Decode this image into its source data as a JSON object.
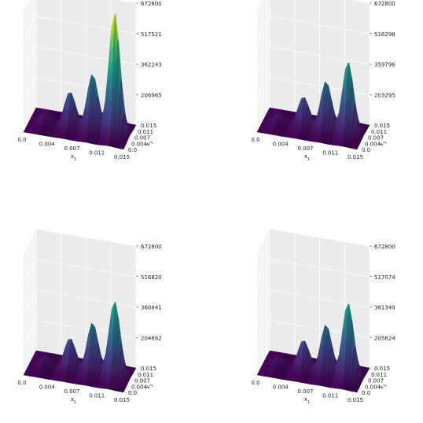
{
  "chart_data": [
    {
      "type": "surface",
      "xlabel": "x_1",
      "ylabel": "x_2",
      "x_ticks": [
        "0.0",
        "0.004",
        "0.007",
        "0.011",
        "0.015"
      ],
      "y_ticks": [
        "0.015",
        "0.011",
        "0.007",
        "0.004",
        "0.0"
      ],
      "z_ticks": [
        "206965",
        "362243",
        "517521",
        "672800"
      ],
      "zlim": [
        51687,
        672800
      ],
      "x_range": [
        0.0,
        0.015
      ],
      "y_range": [
        0.0,
        0.015
      ],
      "colormap": "viridis",
      "bumps": [
        {
          "x": 0.0022,
          "y": 0.0075,
          "z": 95000
        },
        {
          "x": 0.006,
          "y": 0.0075,
          "z": 230000
        },
        {
          "x": 0.0094,
          "y": 0.0075,
          "z": 340000
        },
        {
          "x": 0.0127,
          "y": 0.0075,
          "z": 672800
        }
      ]
    },
    {
      "type": "surface",
      "xlabel": "x_1",
      "ylabel": "x_2",
      "x_ticks": [
        "0.0",
        "0.004",
        "0.007",
        "0.011",
        "0.015"
      ],
      "y_ticks": [
        "0.015",
        "0.011",
        "0.007",
        "0.004",
        "0.0"
      ],
      "z_ticks": [
        "203295",
        "359796",
        "516298",
        "672800"
      ],
      "zlim": [
        46794,
        672800
      ],
      "x_range": [
        0.0,
        0.015
      ],
      "y_range": [
        0.0,
        0.015
      ],
      "colormap": "viridis",
      "bumps": [
        {
          "x": 0.0022,
          "y": 0.0075,
          "z": 90000
        },
        {
          "x": 0.006,
          "y": 0.0075,
          "z": 200000
        },
        {
          "x": 0.0094,
          "y": 0.0075,
          "z": 300000
        },
        {
          "x": 0.0127,
          "y": 0.0075,
          "z": 420000
        }
      ]
    },
    {
      "type": "surface",
      "xlabel": "x_1",
      "ylabel": "x_2",
      "x_ticks": [
        "0.0",
        "0.004",
        "0.007",
        "0.011",
        "0.015"
      ],
      "y_ticks": [
        "0.015",
        "0.011",
        "0.007",
        "0.004",
        "0.0"
      ],
      "z_ticks": [
        "204862",
        "360841",
        "516820",
        "672800"
      ],
      "zlim": [
        48883,
        672800
      ],
      "x_range": [
        0.0,
        0.015
      ],
      "y_range": [
        0.0,
        0.015
      ],
      "colormap": "viridis",
      "bumps": [
        {
          "x": 0.0022,
          "y": 0.0075,
          "z": 90000
        },
        {
          "x": 0.006,
          "y": 0.0075,
          "z": 210000
        },
        {
          "x": 0.0094,
          "y": 0.0075,
          "z": 310000
        },
        {
          "x": 0.0127,
          "y": 0.0075,
          "z": 440000
        }
      ]
    },
    {
      "type": "surface",
      "xlabel": "x_1",
      "ylabel": "x_2",
      "x_ticks": [
        "0.0",
        "0.004",
        "0.007",
        "0.011",
        "0.015"
      ],
      "y_ticks": [
        "0.015",
        "0.011",
        "0.007",
        "0.004",
        "0.0"
      ],
      "z_ticks": [
        "205624",
        "361349",
        "517074",
        "672800"
      ],
      "zlim": [
        49899,
        672800
      ],
      "x_range": [
        0.0,
        0.015
      ],
      "y_range": [
        0.0,
        0.015
      ],
      "colormap": "viridis",
      "bumps": [
        {
          "x": 0.0022,
          "y": 0.0075,
          "z": 90000
        },
        {
          "x": 0.006,
          "y": 0.0075,
          "z": 200000
        },
        {
          "x": 0.0094,
          "y": 0.0075,
          "z": 300000
        },
        {
          "x": 0.0127,
          "y": 0.0075,
          "z": 430000
        }
      ]
    }
  ]
}
